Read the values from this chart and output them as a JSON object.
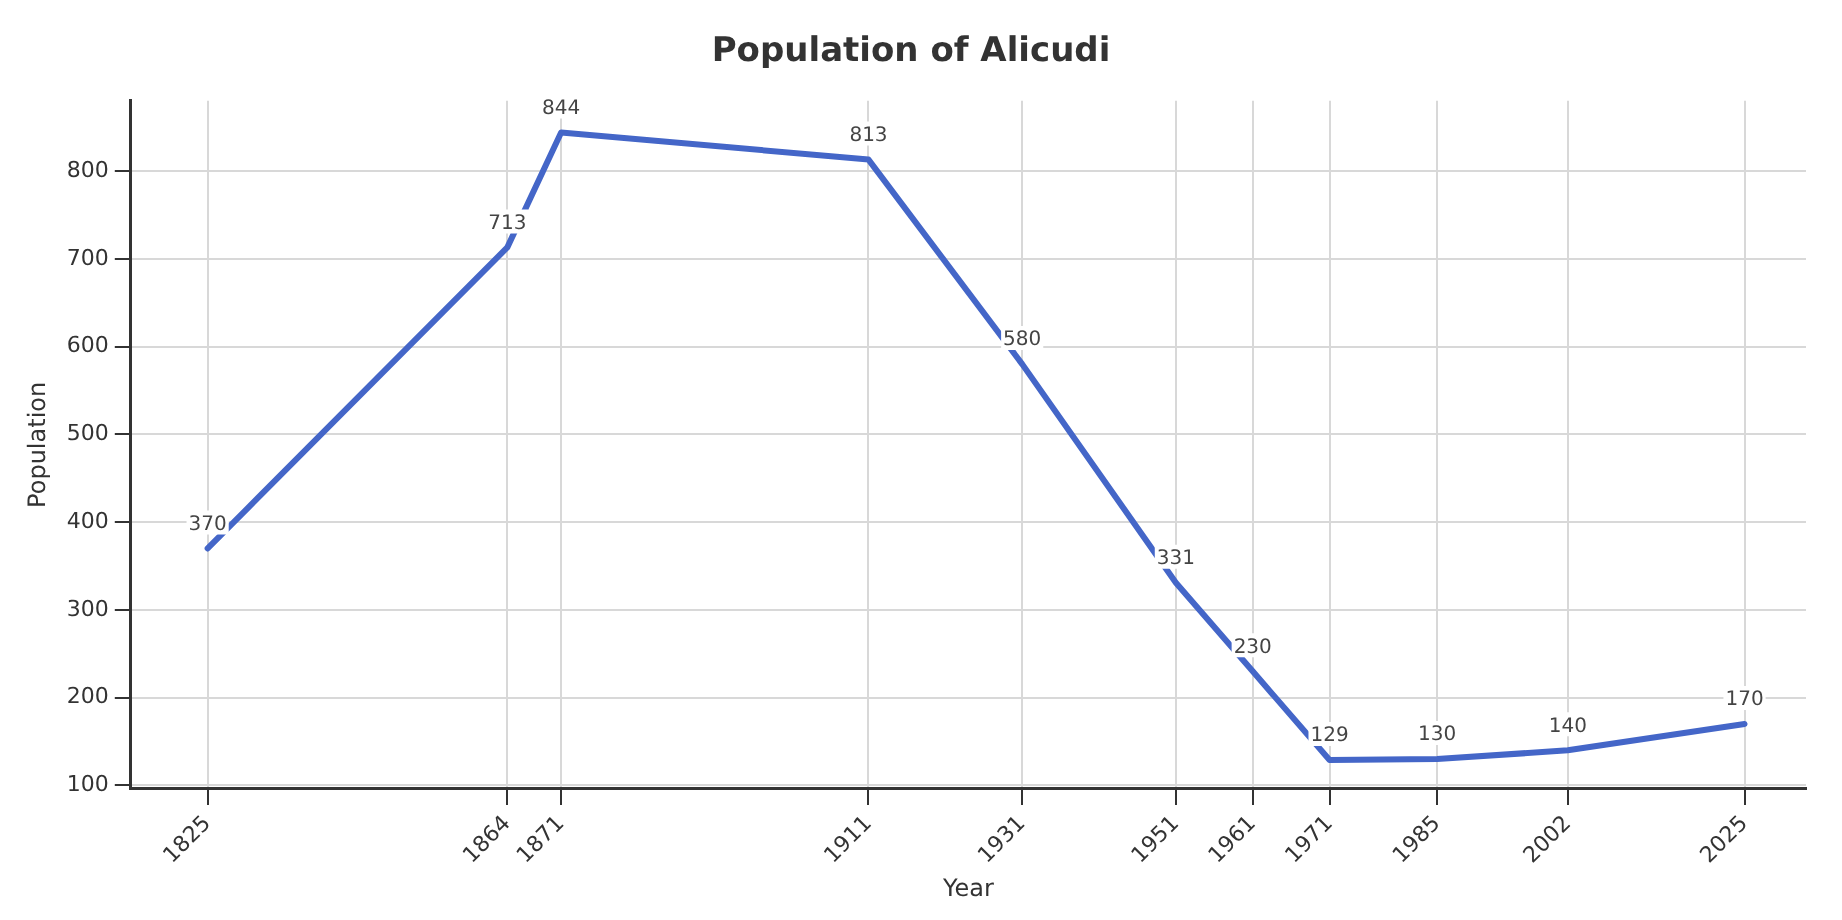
{
  "chart_data": {
    "type": "line",
    "title": "Population of Alicudi",
    "xlabel": "Year",
    "ylabel": "Population",
    "x": [
      1825,
      1864,
      1871,
      1911,
      1931,
      1951,
      1961,
      1971,
      1985,
      2002,
      2025
    ],
    "series": [
      {
        "color": "#4466c8",
        "values": [
          370,
          713,
          844,
          813,
          580,
          331,
          230,
          129,
          130,
          140,
          170
        ]
      }
    ],
    "xlim": [
      1815,
      2033
    ],
    "xticks": [
      1825,
      1864,
      1871,
      1911,
      1931,
      1951,
      1961,
      1971,
      1985,
      2002,
      2025
    ],
    "ylim": [
      96,
      880
    ],
    "yticks": [
      100,
      200,
      300,
      400,
      500,
      600,
      700,
      800
    ],
    "grid": true,
    "legend": false,
    "marker": "none",
    "line_style": "solid",
    "data_labels": true
  }
}
